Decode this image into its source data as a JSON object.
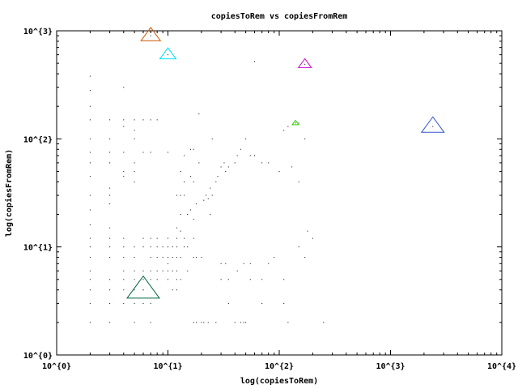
{
  "chart_data": {
    "type": "scatter",
    "title": "copiesToRem vs copiesFromRem",
    "xlabel": "log(copiesToRem)",
    "ylabel": "log(copiesFromRem)",
    "xscale": "log",
    "yscale": "log",
    "xlim": [
      1,
      10000
    ],
    "ylim": [
      1,
      1000
    ],
    "grid": false,
    "legend": "none",
    "x_tick_labels": [
      "10^{0}",
      "10^{1}",
      "10^{2}",
      "10^{3}",
      "10^{4}"
    ],
    "y_tick_labels": [
      "10^{0}",
      "10^{1}",
      "10^{2}",
      "10^{3}"
    ],
    "x_ticks": [
      1,
      10,
      100,
      1000,
      10000
    ],
    "y_ticks": [
      1,
      10,
      100,
      1000
    ],
    "markers": [
      {
        "x": 7.0,
        "y": 900,
        "size": 12,
        "color": "#cc5500"
      },
      {
        "x": 10.0,
        "y": 600,
        "size": 10,
        "color": "#00e0ee"
      },
      {
        "x": 170,
        "y": 490,
        "size": 8,
        "color": "#cc00cc"
      },
      {
        "x": 140,
        "y": 140,
        "size": 4,
        "color": "#33cc00"
      },
      {
        "x": 2400,
        "y": 130,
        "size": 14,
        "color": "#3355cc"
      },
      {
        "x": 6.0,
        "y": 4.0,
        "size": 20,
        "color": "#006644"
      }
    ],
    "points": [
      [
        2,
        380
      ],
      [
        2,
        280
      ],
      [
        2,
        200
      ],
      [
        2,
        150
      ],
      [
        2,
        100
      ],
      [
        2,
        75
      ],
      [
        2,
        60
      ],
      [
        2,
        45
      ],
      [
        2,
        30
      ],
      [
        2,
        22
      ],
      [
        2,
        16
      ],
      [
        2,
        12
      ],
      [
        2,
        10
      ],
      [
        2,
        8
      ],
      [
        2,
        6
      ],
      [
        2,
        5
      ],
      [
        2,
        4
      ],
      [
        2,
        3
      ],
      [
        2,
        2
      ],
      [
        3,
        150
      ],
      [
        3,
        100
      ],
      [
        3,
        75
      ],
      [
        3,
        60
      ],
      [
        3,
        35
      ],
      [
        3,
        30
      ],
      [
        3,
        25
      ],
      [
        3,
        15
      ],
      [
        3,
        12
      ],
      [
        3,
        10
      ],
      [
        3,
        8
      ],
      [
        3,
        5
      ],
      [
        3,
        4
      ],
      [
        3,
        3
      ],
      [
        3,
        2
      ],
      [
        4,
        300
      ],
      [
        4,
        150
      ],
      [
        4,
        130
      ],
      [
        4,
        75
      ],
      [
        4,
        50
      ],
      [
        4,
        45
      ],
      [
        4,
        12
      ],
      [
        4,
        10
      ],
      [
        4,
        8
      ],
      [
        4,
        6
      ],
      [
        4,
        5
      ],
      [
        4,
        4
      ],
      [
        4,
        3
      ],
      [
        5,
        150
      ],
      [
        5,
        120
      ],
      [
        5,
        100
      ],
      [
        5,
        60
      ],
      [
        5,
        50
      ],
      [
        5,
        40
      ],
      [
        5,
        10
      ],
      [
        5,
        8
      ],
      [
        5,
        6
      ],
      [
        5,
        5
      ],
      [
        5,
        4
      ],
      [
        5,
        3
      ],
      [
        5,
        2
      ],
      [
        6,
        150
      ],
      [
        6,
        75
      ],
      [
        6,
        12
      ],
      [
        6,
        10
      ],
      [
        6,
        6
      ],
      [
        6,
        5
      ],
      [
        6,
        4
      ],
      [
        6,
        3
      ],
      [
        7,
        150
      ],
      [
        7,
        75
      ],
      [
        7,
        12
      ],
      [
        7,
        10
      ],
      [
        7,
        8
      ],
      [
        7,
        6
      ],
      [
        7,
        5
      ],
      [
        7,
        3
      ],
      [
        7,
        2
      ],
      [
        8,
        150
      ],
      [
        8,
        12
      ],
      [
        8,
        10
      ],
      [
        8,
        8
      ],
      [
        8,
        6
      ],
      [
        8,
        5
      ],
      [
        9,
        10
      ],
      [
        9,
        8
      ],
      [
        9,
        6
      ],
      [
        10,
        75
      ],
      [
        10,
        12
      ],
      [
        10,
        10
      ],
      [
        10,
        8
      ],
      [
        10,
        7
      ],
      [
        10,
        6
      ],
      [
        10,
        5
      ],
      [
        11,
        10
      ],
      [
        11,
        8
      ],
      [
        11,
        6
      ],
      [
        11,
        4
      ],
      [
        12,
        30
      ],
      [
        12,
        15
      ],
      [
        12,
        12
      ],
      [
        12,
        10
      ],
      [
        12,
        8
      ],
      [
        12,
        6
      ],
      [
        12,
        5
      ],
      [
        12,
        4
      ],
      [
        13,
        50
      ],
      [
        13,
        30
      ],
      [
        13,
        20
      ],
      [
        13,
        14
      ],
      [
        13,
        8
      ],
      [
        13,
        5
      ],
      [
        14,
        70
      ],
      [
        14,
        40
      ],
      [
        14,
        30
      ],
      [
        14,
        12
      ],
      [
        14,
        10
      ],
      [
        15,
        20
      ],
      [
        15,
        10
      ],
      [
        15,
        6
      ],
      [
        16,
        80
      ],
      [
        16,
        45
      ],
      [
        16,
        22
      ],
      [
        17,
        80
      ],
      [
        17,
        40
      ],
      [
        17,
        18
      ],
      [
        17,
        12
      ],
      [
        17,
        8
      ],
      [
        17,
        2
      ],
      [
        18,
        25
      ],
      [
        18,
        8
      ],
      [
        18,
        2
      ],
      [
        19,
        170
      ],
      [
        19,
        60
      ],
      [
        20,
        8
      ],
      [
        20,
        2
      ],
      [
        21,
        27
      ],
      [
        21,
        2
      ],
      [
        22,
        30
      ],
      [
        23,
        28
      ],
      [
        23,
        2
      ],
      [
        24,
        35
      ],
      [
        24,
        20
      ],
      [
        25,
        100
      ],
      [
        25,
        30
      ],
      [
        27,
        40
      ],
      [
        27,
        2
      ],
      [
        28,
        45
      ],
      [
        30,
        55
      ],
      [
        30,
        7
      ],
      [
        30,
        5
      ],
      [
        32,
        60
      ],
      [
        33,
        50
      ],
      [
        33,
        7
      ],
      [
        35,
        55
      ],
      [
        35,
        5
      ],
      [
        35,
        3
      ],
      [
        40,
        60
      ],
      [
        40,
        2
      ],
      [
        42,
        70
      ],
      [
        42,
        6
      ],
      [
        45,
        80
      ],
      [
        45,
        2
      ],
      [
        48,
        7
      ],
      [
        48,
        2
      ],
      [
        50,
        100
      ],
      [
        50,
        2
      ],
      [
        55,
        70
      ],
      [
        55,
        7
      ],
      [
        55,
        5
      ],
      [
        60,
        520
      ],
      [
        60,
        70
      ],
      [
        70,
        60
      ],
      [
        70,
        5
      ],
      [
        70,
        3
      ],
      [
        80,
        60
      ],
      [
        80,
        7
      ],
      [
        90,
        8
      ],
      [
        100,
        50
      ],
      [
        110,
        120
      ],
      [
        110,
        5
      ],
      [
        110,
        3
      ],
      [
        120,
        130
      ],
      [
        120,
        2
      ],
      [
        130,
        55
      ],
      [
        150,
        140
      ],
      [
        150,
        40
      ],
      [
        150,
        10
      ],
      [
        170,
        100
      ],
      [
        170,
        8
      ],
      [
        180,
        14
      ],
      [
        200,
        12
      ],
      [
        250,
        2
      ]
    ]
  }
}
